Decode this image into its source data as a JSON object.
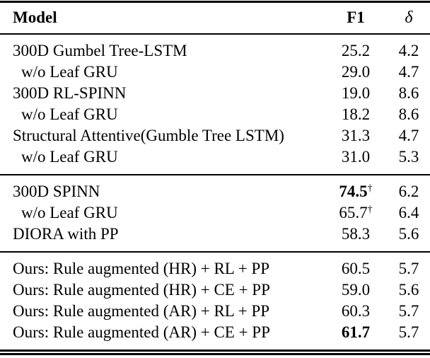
{
  "colors": {
    "text": "#000000",
    "rule": "#000000",
    "background": "#ffffff"
  },
  "dagger_symbol": "†",
  "table": {
    "header": {
      "model": "Model",
      "f1": "F1",
      "delta": "δ"
    },
    "sections": [
      {
        "name": "unsupervised-baselines",
        "rows": [
          {
            "model": "300D Gumbel Tree-LSTM",
            "indent": false,
            "f1": "25.2",
            "f1_bold": false,
            "f1_dagger": false,
            "delta": "4.2"
          },
          {
            "model": "w/o Leaf GRU",
            "indent": true,
            "f1": "29.0",
            "f1_bold": false,
            "f1_dagger": false,
            "delta": "4.7"
          },
          {
            "model": "300D RL-SPINN",
            "indent": false,
            "f1": "19.0",
            "f1_bold": false,
            "f1_dagger": false,
            "delta": "8.6"
          },
          {
            "model": "w/o Leaf GRU",
            "indent": true,
            "f1": "18.2",
            "f1_bold": false,
            "f1_dagger": false,
            "delta": "8.6"
          },
          {
            "model": "Structural Attentive(Gumble Tree LSTM)",
            "indent": false,
            "f1": "31.3",
            "f1_bold": false,
            "f1_dagger": false,
            "delta": "4.7"
          },
          {
            "model": "w/o Leaf GRU",
            "indent": true,
            "f1": "31.0",
            "f1_bold": false,
            "f1_dagger": false,
            "delta": "5.3"
          }
        ]
      },
      {
        "name": "supervised-baselines",
        "rows": [
          {
            "model": "300D SPINN",
            "indent": false,
            "f1": "74.5",
            "f1_bold": true,
            "f1_dagger": true,
            "delta": "6.2"
          },
          {
            "model": "w/o Leaf GRU",
            "indent": true,
            "f1": "65.7",
            "f1_bold": false,
            "f1_dagger": true,
            "delta": "6.4"
          },
          {
            "model": "DIORA with PP",
            "indent": false,
            "f1": "58.3",
            "f1_bold": false,
            "f1_dagger": false,
            "delta": "5.6"
          }
        ]
      },
      {
        "name": "ours",
        "rows": [
          {
            "model": "Ours: Rule augmented (HR) + RL + PP",
            "indent": false,
            "f1": "60.5",
            "f1_bold": false,
            "f1_dagger": false,
            "delta": "5.7"
          },
          {
            "model": "Ours: Rule augmented (HR) + CE + PP",
            "indent": false,
            "f1": "59.0",
            "f1_bold": false,
            "f1_dagger": false,
            "delta": "5.6"
          },
          {
            "model": "Ours: Rule augmented (AR) + RL + PP",
            "indent": false,
            "f1": "60.3",
            "f1_bold": false,
            "f1_dagger": false,
            "delta": "5.7"
          },
          {
            "model": "Ours: Rule augmented (AR) + CE + PP",
            "indent": false,
            "f1": "61.7",
            "f1_bold": true,
            "f1_dagger": false,
            "delta": "5.7"
          }
        ]
      }
    ]
  }
}
